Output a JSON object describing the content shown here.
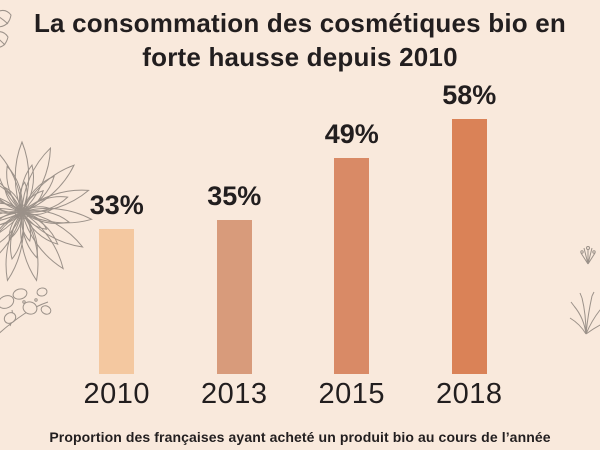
{
  "header": {
    "title_line1": "La consommation des cosmétiques bio en",
    "title_line2": "forte hausse depuis 2010"
  },
  "caption": "Proportion des françaises ayant acheté un produit bio au cours de l’année",
  "colors": {
    "background": "#f9e9dc",
    "text": "#221e1f",
    "decoration": "#9b9189",
    "bar_colors": [
      "#f4c8a0",
      "#d89b7b",
      "#d98a66",
      "#da8257"
    ]
  },
  "chart_data": {
    "type": "bar",
    "title": "La consommation des cosmétiques bio en forte hausse depuis 2010",
    "categories": [
      "2010",
      "2013",
      "2015",
      "2018"
    ],
    "values": [
      33,
      35,
      49,
      58
    ],
    "value_labels": [
      "33%",
      "35%",
      "49%",
      "58%"
    ],
    "unit": "%",
    "ylim": [
      0,
      65
    ],
    "grid": false,
    "legend": false,
    "note": "Proportion des françaises ayant acheté un produit bio au cours de l’année"
  }
}
